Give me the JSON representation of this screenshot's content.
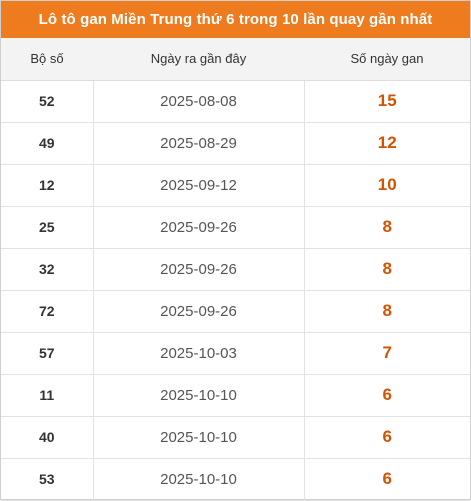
{
  "title": "Lô tô gan Miền Trung thứ 6 trong 10 lần quay gần nhất",
  "headers": [
    "Bộ số",
    "Ngày ra gần đây",
    "Số ngày gan"
  ],
  "rows": [
    {
      "number": "52",
      "date": "2025-08-08",
      "days": "15"
    },
    {
      "number": "49",
      "date": "2025-08-29",
      "days": "12"
    },
    {
      "number": "12",
      "date": "2025-09-12",
      "days": "10"
    },
    {
      "number": "25",
      "date": "2025-09-26",
      "days": "8"
    },
    {
      "number": "32",
      "date": "2025-09-26",
      "days": "8"
    },
    {
      "number": "72",
      "date": "2025-09-26",
      "days": "8"
    },
    {
      "number": "57",
      "date": "2025-10-03",
      "days": "7"
    },
    {
      "number": "11",
      "date": "2025-10-10",
      "days": "6"
    },
    {
      "number": "40",
      "date": "2025-10-10",
      "days": "6"
    },
    {
      "number": "53",
      "date": "2025-10-10",
      "days": "6"
    }
  ],
  "colors": {
    "title_bg": "#ee7b1e",
    "days_text": "#d35400"
  }
}
